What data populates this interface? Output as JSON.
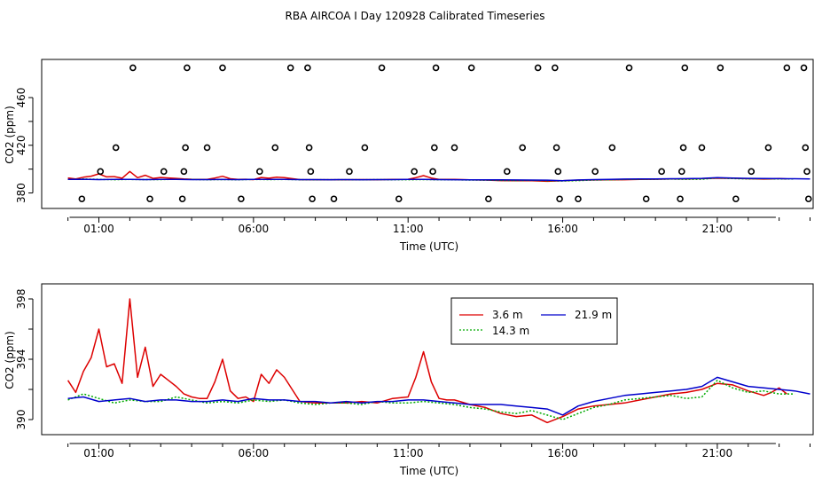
{
  "title": "RBA AIRCOA I  Day 120928  Calibrated Timeseries",
  "colors": {
    "s1": "#dd0000",
    "s2": "#00aa00",
    "s3": "#0000cc"
  },
  "chart_data": [
    {
      "type": "scatter",
      "xlabel": "Time (UTC)",
      "ylabel": "CO2 (ppm)",
      "xlim": [
        -0.85,
        24.1
      ],
      "ylim": [
        367,
        492
      ],
      "yticks": [
        380,
        420,
        460
      ],
      "xticks": [
        {
          "value": 1,
          "label": "01:00"
        },
        {
          "value": 6,
          "label": "06:00"
        },
        {
          "value": 11,
          "label": "11:00"
        },
        {
          "value": 16,
          "label": "16:00"
        },
        {
          "value": 21,
          "label": "21:00"
        }
      ],
      "calibration_points": [
        [
          0.45,
          375
        ],
        [
          1.05,
          398
        ],
        [
          1.55,
          418
        ],
        [
          2.1,
          485
        ],
        [
          2.65,
          375
        ],
        [
          3.1,
          398
        ],
        [
          3.7,
          375
        ],
        [
          3.75,
          398
        ],
        [
          3.8,
          418
        ],
        [
          3.85,
          485
        ],
        [
          4.5,
          418
        ],
        [
          5.0,
          485
        ],
        [
          5.6,
          375
        ],
        [
          6.2,
          398
        ],
        [
          6.7,
          418
        ],
        [
          7.2,
          485
        ],
        [
          7.75,
          485
        ],
        [
          7.8,
          418
        ],
        [
          7.85,
          398
        ],
        [
          7.9,
          375
        ],
        [
          8.6,
          375
        ],
        [
          9.1,
          398
        ],
        [
          9.6,
          418
        ],
        [
          10.15,
          485
        ],
        [
          10.7,
          375
        ],
        [
          11.2,
          398
        ],
        [
          11.8,
          398
        ],
        [
          11.85,
          418
        ],
        [
          11.9,
          485
        ],
        [
          12.5,
          418
        ],
        [
          13.05,
          485
        ],
        [
          13.6,
          375
        ],
        [
          14.2,
          398
        ],
        [
          14.7,
          418
        ],
        [
          15.2,
          485
        ],
        [
          15.75,
          485
        ],
        [
          15.8,
          418
        ],
        [
          15.85,
          398
        ],
        [
          15.9,
          375
        ],
        [
          16.5,
          375
        ],
        [
          17.05,
          398
        ],
        [
          17.6,
          418
        ],
        [
          18.15,
          485
        ],
        [
          18.7,
          375
        ],
        [
          19.2,
          398
        ],
        [
          19.8,
          375
        ],
        [
          19.85,
          398
        ],
        [
          19.9,
          418
        ],
        [
          19.95,
          485
        ],
        [
          20.5,
          418
        ],
        [
          21.1,
          485
        ],
        [
          21.6,
          375
        ],
        [
          22.1,
          398
        ],
        [
          22.65,
          418
        ],
        [
          23.25,
          485
        ],
        [
          23.8,
          485
        ],
        [
          23.85,
          418
        ],
        [
          23.9,
          398
        ],
        [
          23.95,
          375
        ]
      ],
      "series": [
        {
          "name": "3.6 m",
          "x": [
            0,
            0.25,
            0.5,
            0.75,
            1,
            1.25,
            1.5,
            1.75,
            2,
            2.25,
            2.5,
            2.75,
            3,
            3.25,
            3.5,
            3.75,
            4,
            4.25,
            4.5,
            4.75,
            5,
            5.25,
            5.5,
            5.75,
            6,
            6.25,
            6.5,
            6.75,
            7,
            7.5,
            8,
            8.5,
            9,
            9.5,
            10,
            10.5,
            11,
            11.25,
            11.5,
            11.75,
            12,
            12.25,
            12.5,
            13,
            13.5,
            14,
            14.5,
            15,
            15.5,
            16,
            16.5,
            17,
            17.5,
            18,
            18.5,
            19,
            19.5,
            20,
            20.5,
            21,
            21.5,
            22,
            22.5,
            22.75,
            23,
            23.25
          ],
          "values": [
            392.6,
            391.8,
            393.2,
            394.1,
            396,
            393.5,
            393.7,
            392.4,
            398,
            392.8,
            394.8,
            392.2,
            393,
            392.6,
            392.2,
            391.7,
            391.5,
            391.4,
            391.4,
            392.5,
            394,
            391.9,
            391.4,
            391.5,
            391.2,
            393,
            392.4,
            393.3,
            392.8,
            391.2,
            391.1,
            391.1,
            391.1,
            391.2,
            391.1,
            391.4,
            391.5,
            392.8,
            394.5,
            392.5,
            391.4,
            391.3,
            391.3,
            391.0,
            390.8,
            390.4,
            390.2,
            390.3,
            389.8,
            390.2,
            390.7,
            390.9,
            391.0,
            391.1,
            391.3,
            391.5,
            391.7,
            391.8,
            392.0,
            392.4,
            392.3,
            391.9,
            391.6,
            391.8,
            392.1,
            391.7
          ]
        },
        {
          "name": "14.3 m",
          "x": [
            0,
            0.5,
            1,
            1.5,
            2,
            2.5,
            3,
            3.5,
            4,
            4.5,
            5,
            5.5,
            6,
            6.5,
            7,
            7.5,
            8,
            8.5,
            9,
            9.5,
            10,
            10.5,
            11,
            11.5,
            12,
            12.5,
            13,
            13.5,
            14,
            14.5,
            15,
            15.5,
            16,
            16.5,
            17,
            17.5,
            18,
            18.5,
            19,
            19.5,
            20,
            20.5,
            21,
            21.5,
            22,
            22.5,
            23,
            23.5
          ],
          "values": [
            391.3,
            391.7,
            391.4,
            391.1,
            391.3,
            391.2,
            391.2,
            391.5,
            391.3,
            391.1,
            391.2,
            391.1,
            391.3,
            391.2,
            391.3,
            391.1,
            391.0,
            391.1,
            391.1,
            391.0,
            391.2,
            391.1,
            391.1,
            391.2,
            391.1,
            391.0,
            390.8,
            390.7,
            390.5,
            390.4,
            390.6,
            390.3,
            390.0,
            390.4,
            390.8,
            391.0,
            391.3,
            391.4,
            391.5,
            391.6,
            391.4,
            391.5,
            392.6,
            392.1,
            391.8,
            391.9,
            391.7,
            391.7
          ]
        },
        {
          "name": "21.9 m",
          "x": [
            0,
            0.5,
            1,
            1.5,
            2,
            2.5,
            3,
            3.5,
            4,
            4.5,
            5,
            5.5,
            6,
            6.5,
            7,
            7.5,
            8,
            8.5,
            9,
            9.5,
            10,
            10.5,
            11,
            11.5,
            12,
            12.5,
            13,
            13.5,
            14,
            14.5,
            15,
            15.5,
            16,
            16.5,
            17,
            17.5,
            18,
            18.5,
            19,
            19.5,
            20,
            20.5,
            21,
            21.5,
            22,
            22.5,
            23,
            23.5,
            24
          ],
          "values": [
            391.4,
            391.5,
            391.2,
            391.3,
            391.4,
            391.2,
            391.3,
            391.3,
            391.2,
            391.2,
            391.3,
            391.2,
            391.4,
            391.3,
            391.3,
            391.2,
            391.2,
            391.1,
            391.2,
            391.1,
            391.2,
            391.2,
            391.3,
            391.3,
            391.2,
            391.1,
            391.0,
            391.0,
            391.0,
            390.9,
            390.8,
            390.7,
            390.3,
            390.9,
            391.2,
            391.4,
            391.6,
            391.7,
            391.8,
            391.9,
            392.0,
            392.2,
            392.8,
            392.5,
            392.2,
            392.1,
            392.0,
            391.9,
            391.7
          ]
        }
      ]
    },
    {
      "type": "line",
      "xlabel": "Time (UTC)",
      "ylabel": "CO2 (ppm)",
      "xlim": [
        -0.85,
        24.1
      ],
      "ylim": [
        389.0,
        399.0
      ],
      "yticks": [
        390,
        394,
        398
      ],
      "xticks": [
        {
          "value": 1,
          "label": "01:00"
        },
        {
          "value": 6,
          "label": "06:00"
        },
        {
          "value": 11,
          "label": "11:00"
        },
        {
          "value": 16,
          "label": "16:00"
        },
        {
          "value": 21,
          "label": "21:00"
        }
      ],
      "legend": {
        "position": "top-right",
        "entries": [
          "3.6 m",
          "14.3 m",
          "21.9 m"
        ]
      },
      "series": [
        {
          "name": "3.6 m",
          "x": [
            0,
            0.25,
            0.5,
            0.75,
            1,
            1.25,
            1.5,
            1.75,
            2,
            2.25,
            2.5,
            2.75,
            3,
            3.25,
            3.5,
            3.75,
            4,
            4.25,
            4.5,
            4.75,
            5,
            5.25,
            5.5,
            5.75,
            6,
            6.25,
            6.5,
            6.75,
            7,
            7.5,
            8,
            8.5,
            9,
            9.5,
            10,
            10.5,
            11,
            11.25,
            11.5,
            11.75,
            12,
            12.25,
            12.5,
            13,
            13.5,
            14,
            14.5,
            15,
            15.5,
            16,
            16.5,
            17,
            17.5,
            18,
            18.5,
            19,
            19.5,
            20,
            20.5,
            21,
            21.5,
            22,
            22.5,
            22.75,
            23,
            23.25
          ],
          "values": [
            392.6,
            391.8,
            393.2,
            394.1,
            396,
            393.5,
            393.7,
            392.4,
            398,
            392.8,
            394.8,
            392.2,
            393,
            392.6,
            392.2,
            391.7,
            391.5,
            391.4,
            391.4,
            392.5,
            394,
            391.9,
            391.4,
            391.5,
            391.2,
            393,
            392.4,
            393.3,
            392.8,
            391.2,
            391.1,
            391.1,
            391.1,
            391.2,
            391.1,
            391.4,
            391.5,
            392.8,
            394.5,
            392.5,
            391.4,
            391.3,
            391.3,
            391.0,
            390.8,
            390.4,
            390.2,
            390.3,
            389.8,
            390.2,
            390.7,
            390.9,
            391.0,
            391.1,
            391.3,
            391.5,
            391.7,
            391.8,
            392.0,
            392.4,
            392.3,
            391.9,
            391.6,
            391.8,
            392.1,
            391.7
          ]
        },
        {
          "name": "14.3 m",
          "x": [
            0,
            0.5,
            1,
            1.5,
            2,
            2.5,
            3,
            3.5,
            4,
            4.5,
            5,
            5.5,
            6,
            6.5,
            7,
            7.5,
            8,
            8.5,
            9,
            9.5,
            10,
            10.5,
            11,
            11.5,
            12,
            12.5,
            13,
            13.5,
            14,
            14.5,
            15,
            15.5,
            16,
            16.5,
            17,
            17.5,
            18,
            18.5,
            19,
            19.5,
            20,
            20.5,
            21,
            21.5,
            22,
            22.5,
            23,
            23.5
          ],
          "values": [
            391.3,
            391.7,
            391.4,
            391.1,
            391.3,
            391.2,
            391.2,
            391.5,
            391.3,
            391.1,
            391.2,
            391.1,
            391.3,
            391.2,
            391.3,
            391.1,
            391.0,
            391.1,
            391.1,
            391.0,
            391.2,
            391.1,
            391.1,
            391.2,
            391.1,
            391.0,
            390.8,
            390.7,
            390.5,
            390.4,
            390.6,
            390.3,
            390.0,
            390.4,
            390.8,
            391.0,
            391.3,
            391.4,
            391.5,
            391.6,
            391.4,
            391.5,
            392.6,
            392.1,
            391.8,
            391.9,
            391.7,
            391.7
          ]
        },
        {
          "name": "21.9 m",
          "x": [
            0,
            0.5,
            1,
            1.5,
            2,
            2.5,
            3,
            3.5,
            4,
            4.5,
            5,
            5.5,
            6,
            6.5,
            7,
            7.5,
            8,
            8.5,
            9,
            9.5,
            10,
            10.5,
            11,
            11.5,
            12,
            12.5,
            13,
            13.5,
            14,
            14.5,
            15,
            15.5,
            16,
            16.5,
            17,
            17.5,
            18,
            18.5,
            19,
            19.5,
            20,
            20.5,
            21,
            21.5,
            22,
            22.5,
            23,
            23.5,
            24
          ],
          "values": [
            391.4,
            391.5,
            391.2,
            391.3,
            391.4,
            391.2,
            391.3,
            391.3,
            391.2,
            391.2,
            391.3,
            391.2,
            391.4,
            391.3,
            391.3,
            391.2,
            391.2,
            391.1,
            391.2,
            391.1,
            391.2,
            391.2,
            391.3,
            391.3,
            391.2,
            391.1,
            391.0,
            391.0,
            391.0,
            390.9,
            390.8,
            390.7,
            390.3,
            390.9,
            391.2,
            391.4,
            391.6,
            391.7,
            391.8,
            391.9,
            392.0,
            392.2,
            392.8,
            392.5,
            392.2,
            392.1,
            392.0,
            391.9,
            391.7
          ]
        }
      ]
    }
  ]
}
